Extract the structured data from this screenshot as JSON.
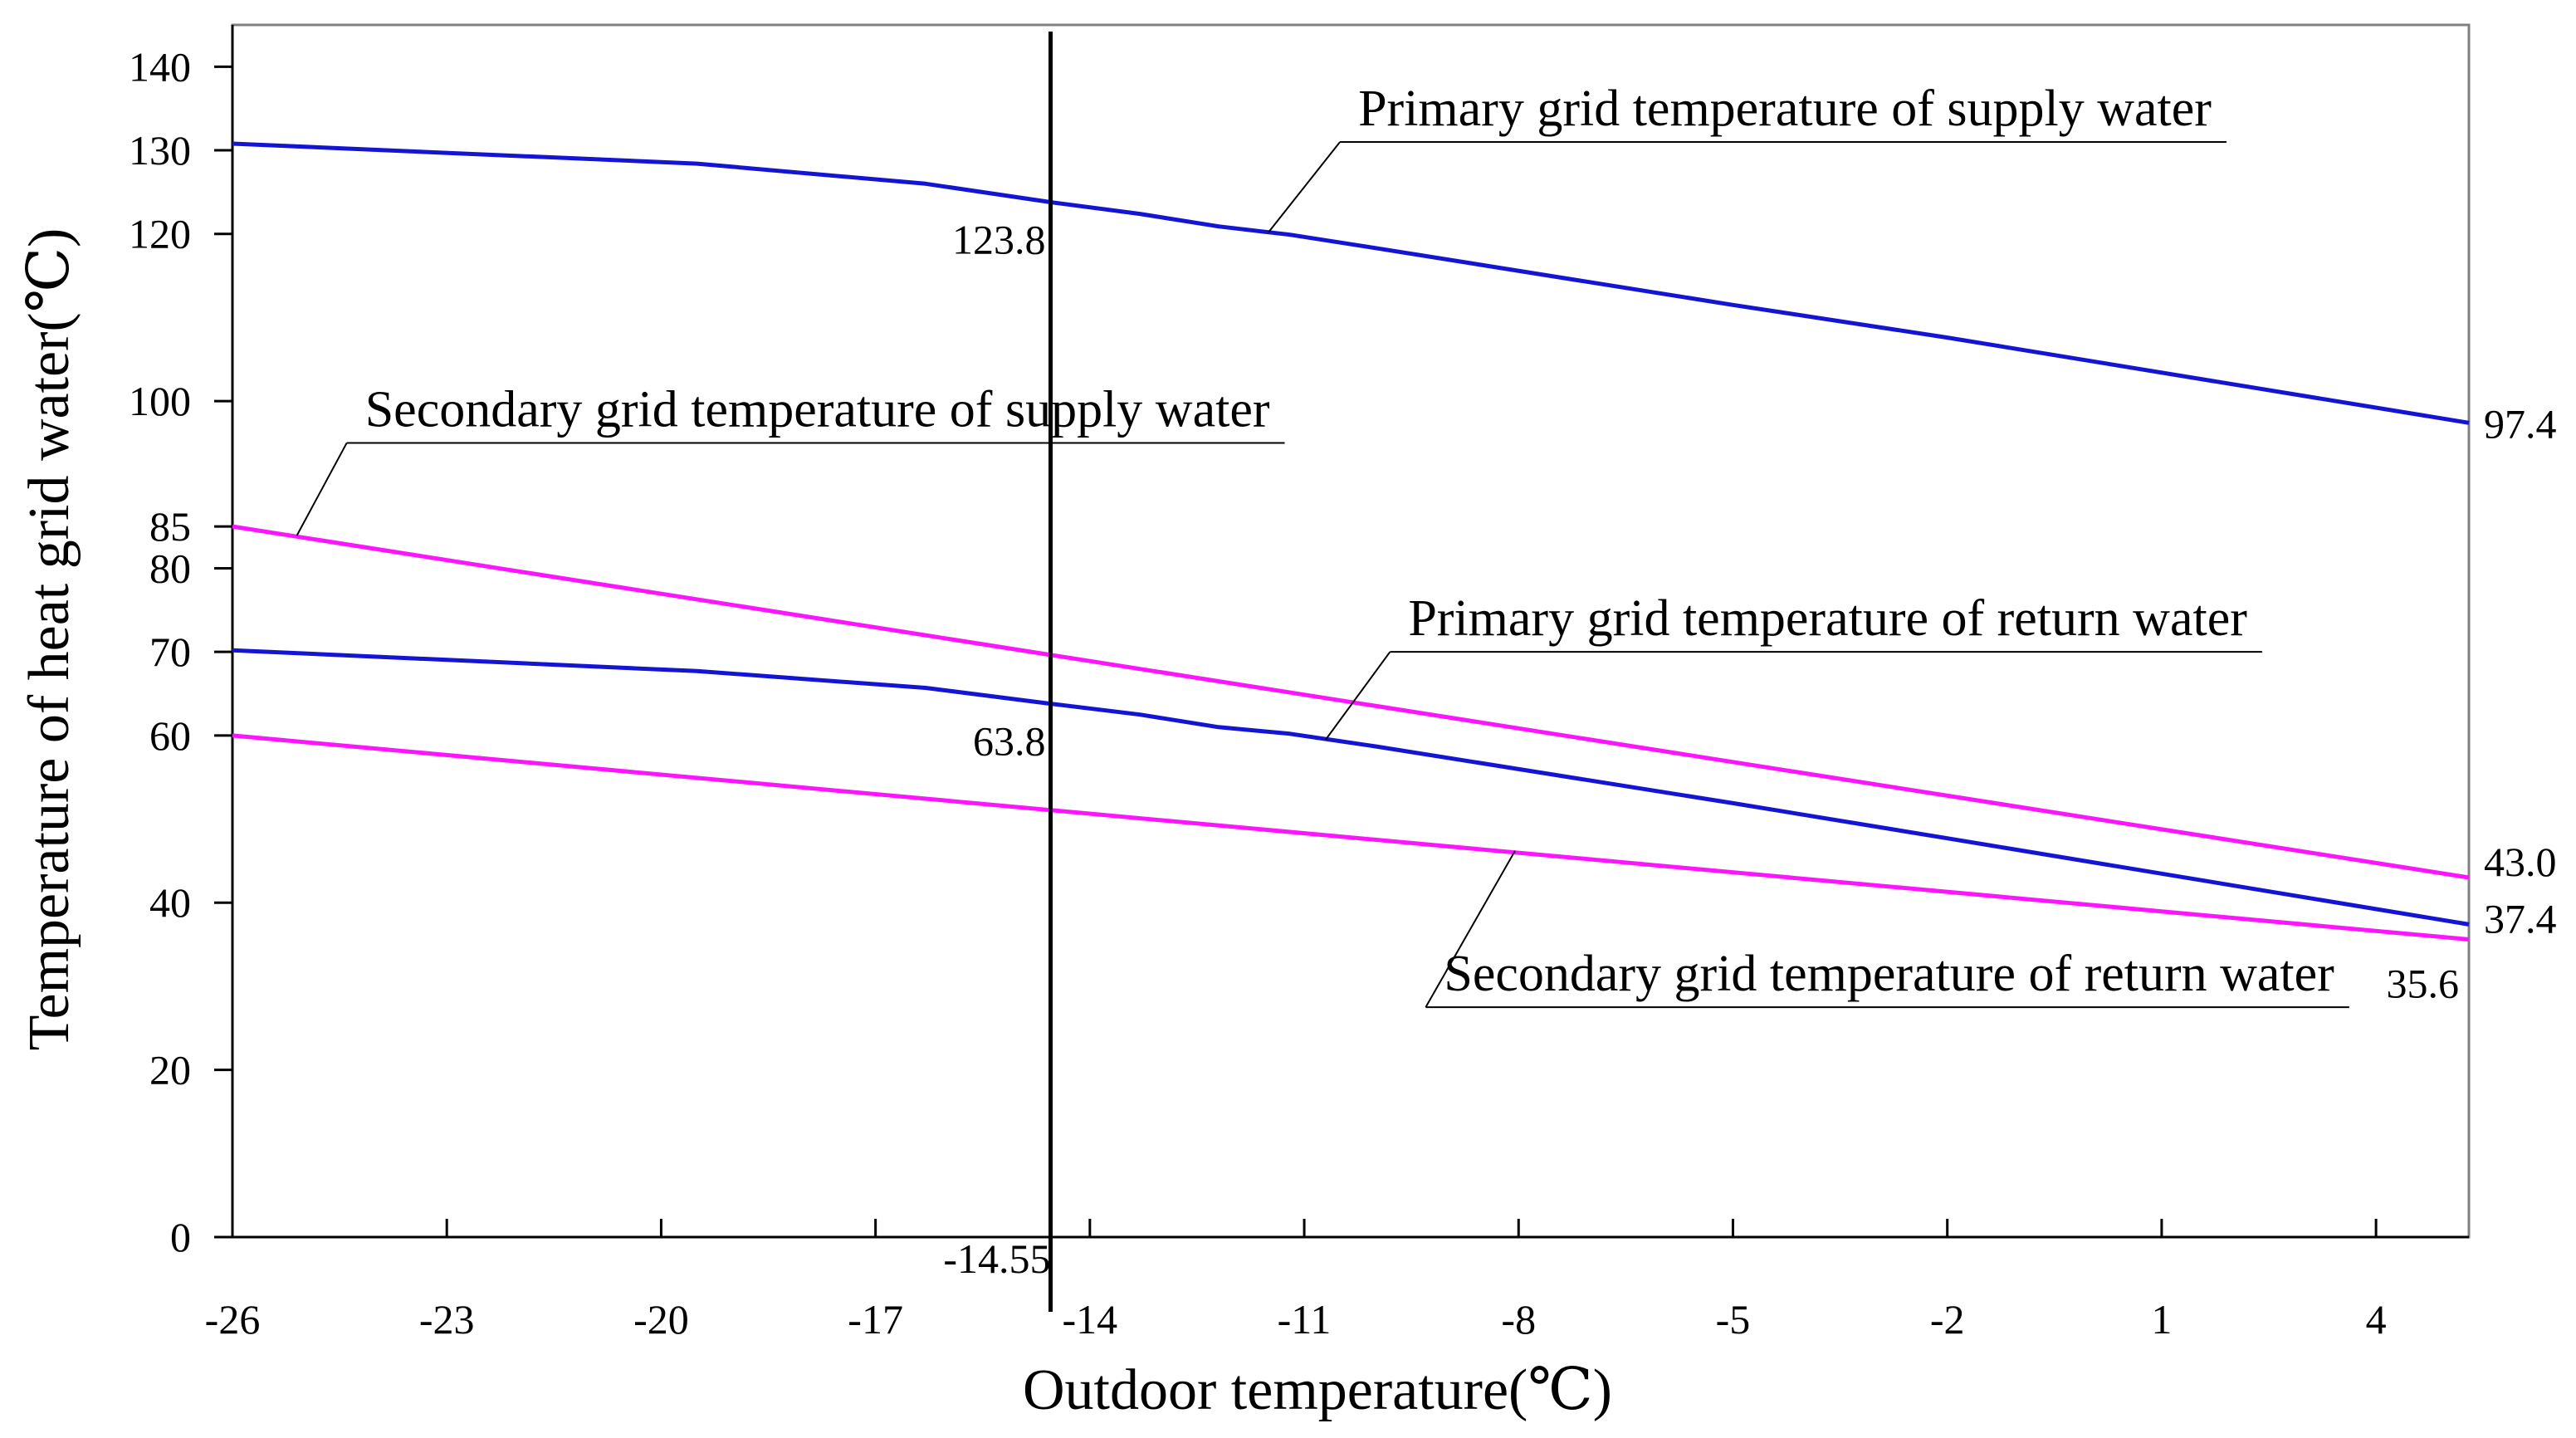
{
  "chart_data": {
    "type": "line",
    "xlabel": "Outdoor temperature(℃)",
    "ylabel": "Temperature of heat grid water(℃)",
    "xlim": [
      -26,
      5.3
    ],
    "ylim": [
      0,
      145
    ],
    "x_ticks": [
      -26,
      -23,
      -20,
      -17,
      -14,
      -11,
      -8,
      -5,
      -2,
      1,
      4
    ],
    "x_tick_labels": [
      "-26",
      "-23",
      "-20",
      "-17",
      "-14",
      "-11",
      "-8",
      "-5",
      "-2",
      "1",
      "4"
    ],
    "y_ticks": [
      0,
      20,
      40,
      60,
      70,
      80,
      85,
      100,
      120,
      130,
      140
    ],
    "y_tick_labels": [
      "0",
      "20",
      "40",
      "60",
      "70",
      "80",
      "85",
      "100",
      "120",
      "130",
      "140"
    ],
    "colors": {
      "primary": "#1414d4",
      "secondary": "#ff14ff",
      "axis": "#000000",
      "frame": "#808080"
    },
    "series": [
      {
        "name": "Primary grid temperature of supply water",
        "color": "#1414d4",
        "x": [
          -26,
          -19.5,
          -16.3,
          -14.55,
          -13.3,
          -12.2,
          -11.2,
          -10,
          -5,
          -2,
          5.3
        ],
        "y": [
          130.8,
          128.4,
          126.0,
          123.8,
          122.4,
          120.9,
          119.9,
          118.3,
          111.5,
          107.6,
          97.4
        ],
        "end_label": "97.4",
        "leader_from": {
          "x": -11.5,
          "y": 120.2
        },
        "label_anchor": {
          "x": -10.5,
          "y": 131
        }
      },
      {
        "name": "Primary grid temperature of return water",
        "color": "#1414d4",
        "x": [
          -26,
          -19.5,
          -16.3,
          -14.55,
          -13.3,
          -12.2,
          -11.2,
          -10,
          -5,
          -2,
          5.3
        ],
        "y": [
          70.2,
          67.7,
          65.7,
          63.8,
          62.5,
          61.0,
          60.2,
          58.7,
          51.9,
          47.7,
          37.4
        ],
        "end_label": "37.4",
        "leader_from": {
          "x": -10.7,
          "y": 59.5
        },
        "label_anchor": {
          "x": -9.8,
          "y": 70
        }
      },
      {
        "name": "Secondary grid temperature of supply water",
        "color": "#ff14ff",
        "x": [
          -26,
          5.3
        ],
        "y": [
          85.0,
          43.0
        ],
        "end_label": "43.0",
        "leader_from": {
          "x": -25.1,
          "y": 83.9
        },
        "label_anchor": {
          "x": -24.4,
          "y": 95
        }
      },
      {
        "name": "Secondary grid temperature of return water",
        "color": "#ff14ff",
        "x": [
          -26,
          5.3
        ],
        "y": [
          60.0,
          35.6
        ],
        "end_label": "35.6",
        "leader_from": {
          "x": -8.05,
          "y": 46.2
        },
        "label_anchor": {
          "x": -9.3,
          "y": 27.5
        }
      }
    ],
    "vertical_marker": {
      "x": -14.55,
      "label": "-14.55"
    },
    "annotations": [
      {
        "text": "123.8",
        "x": -14.55,
        "y": 123.8
      },
      {
        "text": "63.8",
        "x": -14.55,
        "y": 63.8
      }
    ]
  }
}
